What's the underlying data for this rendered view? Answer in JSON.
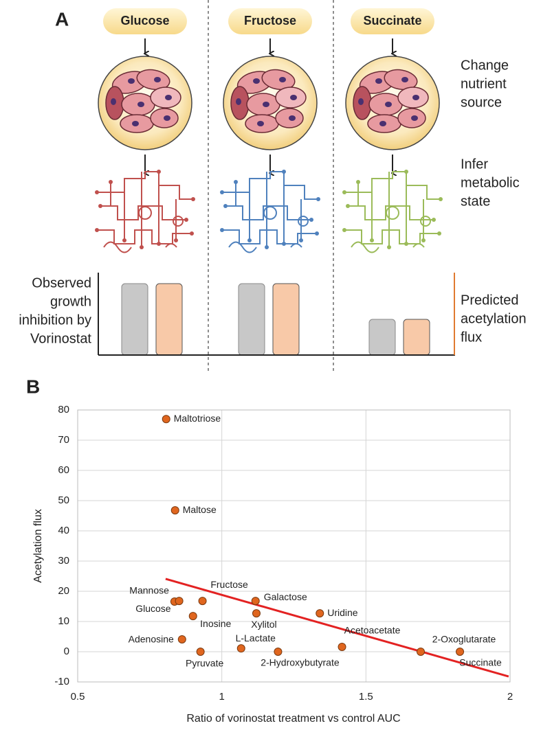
{
  "panel_a": {
    "label": "A",
    "nutrients": [
      "Glucose",
      "Fructose",
      "Succinate"
    ],
    "change_nutrient_source": [
      "Change",
      "nutrient",
      "source"
    ],
    "infer_metabolic_state": [
      "Infer",
      "metabolic",
      "state"
    ],
    "observed_growth_inhibition": [
      "Observed",
      "growth",
      "inhibition by",
      "Vorinostat"
    ],
    "predicted_acetylation_flux": [
      "Predicted",
      "acetylation",
      "flux"
    ]
  },
  "chart_data": {
    "type": "scatter",
    "panel_label": "B",
    "x_label": "Ratio of vorinostat treatment vs control AUC",
    "y_label": "Acetylation flux",
    "point_labels": [
      "Maltotriose",
      "Maltose",
      "Mannose",
      "Glucose",
      "Fructose",
      "Inosine",
      "Galactose",
      "Xylitol",
      "Uridine",
      "Adenosine",
      "Pyruvate",
      "L-Lactate",
      "2-Hydroxybutyrate",
      "Acetoacetate",
      "2-Oxoglutarate",
      "Succinate"
    ],
    "x": [
      0.807,
      0.838,
      0.836,
      0.852,
      0.933,
      0.9,
      1.117,
      1.12,
      1.34,
      0.862,
      0.926,
      1.067,
      1.195,
      1.417,
      1.69,
      1.826
    ],
    "values": [
      77,
      46.8,
      16.6,
      16.8,
      16.8,
      11.8,
      16.8,
      12.7,
      12.7,
      4.1,
      0,
      1.1,
      0,
      1.6,
      0,
      0
    ],
    "color": "#e0661f",
    "trendline": {
      "x": [
        0.805,
        1.995
      ],
      "y": [
        24.1,
        -8.2
      ],
      "color": "#e32222"
    },
    "xlim": [
      0.5,
      2
    ],
    "xticks": [
      0.5,
      1,
      1.5,
      2
    ],
    "ylim": [
      -10,
      80
    ],
    "yticks": [
      -10,
      0,
      10,
      20,
      30,
      40,
      50,
      60,
      70,
      80
    ],
    "grid": true
  }
}
